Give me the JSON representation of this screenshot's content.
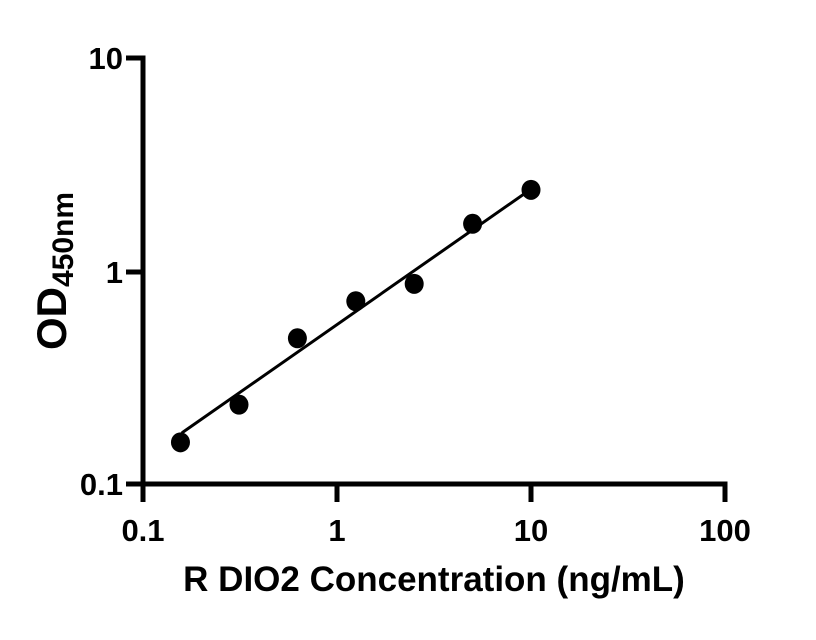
{
  "figure": {
    "background_color": "#ffffff",
    "ink_color": "#000000"
  },
  "chart_data": {
    "type": "scatter",
    "title": "",
    "xlabel": "R DIO2 Concentration (ng/mL)",
    "ylabel_main": "OD",
    "ylabel_sub": "450nm",
    "x_scale": "log",
    "y_scale": "log",
    "xlim": [
      0.1,
      100
    ],
    "ylim": [
      0.1,
      10
    ],
    "x_ticks": [
      {
        "value": 0.1,
        "label": "0.1"
      },
      {
        "value": 1,
        "label": "1"
      },
      {
        "value": 10,
        "label": "10"
      },
      {
        "value": 100,
        "label": "100"
      }
    ],
    "y_ticks": [
      {
        "value": 0.1,
        "label": "0.1"
      },
      {
        "value": 1,
        "label": "1"
      },
      {
        "value": 10,
        "label": "10"
      }
    ],
    "grid": false,
    "legend": false,
    "marker": {
      "shape": "filled-circle",
      "color": "#000000"
    },
    "points": [
      {
        "x": 0.156,
        "od": 0.16
      },
      {
        "x": 0.3125,
        "od": 0.24
      },
      {
        "x": 0.625,
        "od": 0.49
      },
      {
        "x": 1.25,
        "od": 0.73
      },
      {
        "x": 2.5,
        "od": 0.88
      },
      {
        "x": 5,
        "od": 1.68
      },
      {
        "x": 10,
        "od": 2.42
      }
    ],
    "fit_line": {
      "x_start": 0.16,
      "od_start": 0.178,
      "x_end": 10,
      "od_end": 2.44
    }
  }
}
